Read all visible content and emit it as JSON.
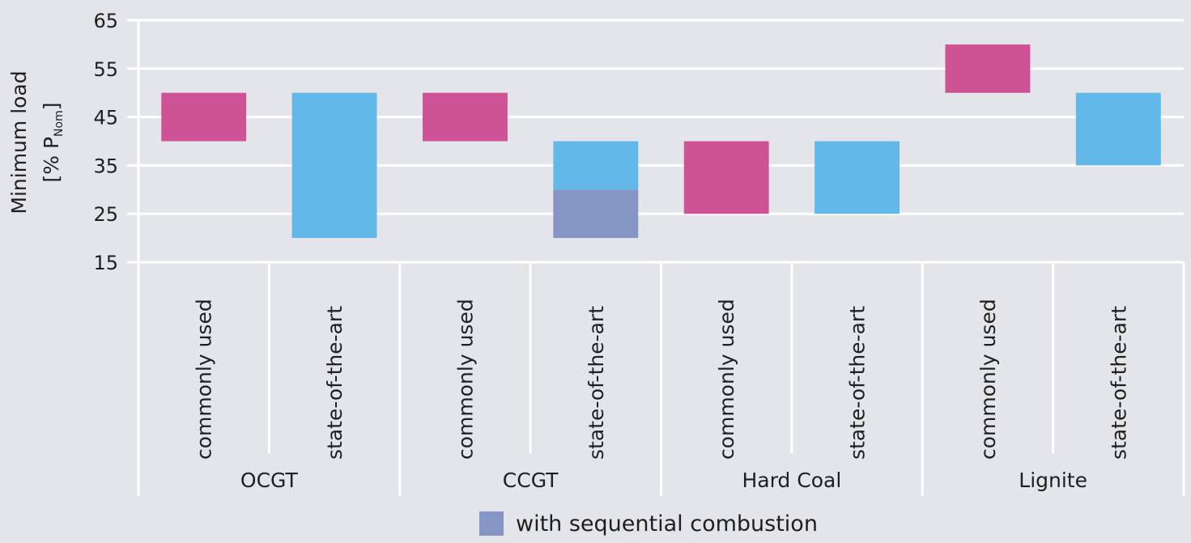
{
  "chart_data": {
    "type": "bar",
    "subtype": "floating-range",
    "ylabel_line1": "Minimum load",
    "ylabel_line2_prefix": "[% P",
    "ylabel_line2_sub": "Nom",
    "ylabel_line2_suffix": "]",
    "ylim": [
      15,
      65
    ],
    "yticks": [
      15,
      25,
      35,
      45,
      55,
      65
    ],
    "grid": true,
    "colors": {
      "commonly_used": "#cf5196",
      "state_of_the_art": "#62b9e9",
      "sequential_combustion": "#8595c4",
      "gridline": "#ffffff",
      "axis": "#ffffff"
    },
    "groups": [
      {
        "name": "OCGT",
        "bars": [
          {
            "label": "commonly used",
            "low": 40,
            "high": 50,
            "kind": "commonly_used"
          },
          {
            "label": "state-of-the-art",
            "low": 20,
            "high": 50,
            "kind": "state_of_the_art"
          }
        ]
      },
      {
        "name": "CCGT",
        "bars": [
          {
            "label": "commonly used",
            "low": 40,
            "high": 50,
            "kind": "commonly_used"
          },
          {
            "label": "state-of-the-art",
            "low": 30,
            "high": 40,
            "kind": "state_of_the_art",
            "sequential_combustion": {
              "low": 20,
              "high": 30
            }
          }
        ]
      },
      {
        "name": "Hard Coal",
        "bars": [
          {
            "label": "commonly used",
            "low": 25,
            "high": 40,
            "kind": "commonly_used"
          },
          {
            "label": "state-of-the-art",
            "low": 25,
            "high": 40,
            "kind": "state_of_the_art"
          }
        ]
      },
      {
        "name": "Lignite",
        "bars": [
          {
            "label": "commonly used",
            "low": 50,
            "high": 60,
            "kind": "commonly_used"
          },
          {
            "label": "state-of-the-art",
            "low": 35,
            "high": 50,
            "kind": "state_of_the_art"
          }
        ]
      }
    ],
    "legend": [
      {
        "label": "with sequential combustion",
        "kind": "sequential_combustion"
      }
    ],
    "legend_position": "bottom-center"
  }
}
